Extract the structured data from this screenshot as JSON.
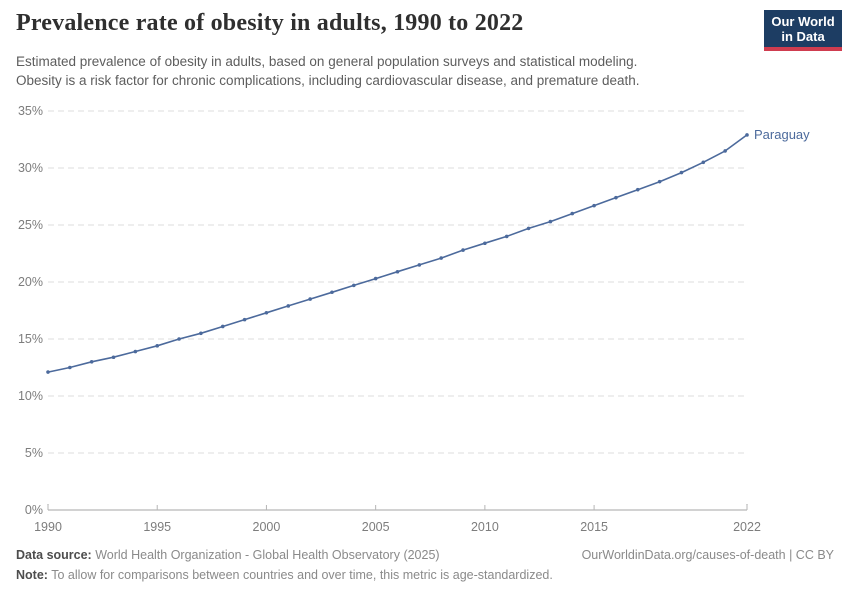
{
  "header": {
    "title": "Prevalence rate of obesity in adults, 1990 to 2022",
    "subtitle_line1": "Estimated prevalence of obesity in adults, based on general population surveys and statistical modeling.",
    "subtitle_line2": "Obesity is a risk factor for chronic complications, including cardiovascular disease, and premature death."
  },
  "logo": {
    "line1": "Our World",
    "line2": "in Data",
    "bg_color": "#1d3d63",
    "accent_color": "#cf3c4f"
  },
  "chart_data": {
    "type": "line",
    "title": "Prevalence rate of obesity in adults, 1990 to 2022",
    "xlabel": "",
    "ylabel": "",
    "xlim": [
      1990,
      2022
    ],
    "ylim": [
      0,
      35
    ],
    "grid": "horizontal-dashed",
    "legend_position": "end-of-line-label",
    "xticks": [
      1990,
      1995,
      2000,
      2005,
      2010,
      2015,
      2022
    ],
    "yticks": [
      0,
      5,
      10,
      15,
      20,
      25,
      30,
      35
    ],
    "ytick_suffix": "%",
    "x": [
      1990,
      1991,
      1992,
      1993,
      1994,
      1995,
      1996,
      1997,
      1998,
      1999,
      2000,
      2001,
      2002,
      2003,
      2004,
      2005,
      2006,
      2007,
      2008,
      2009,
      2010,
      2011,
      2012,
      2013,
      2014,
      2015,
      2016,
      2017,
      2018,
      2019,
      2020,
      2021,
      2022
    ],
    "series": [
      {
        "name": "Paraguay",
        "color": "#4c6a9c",
        "values": [
          12.1,
          12.5,
          13.0,
          13.4,
          13.9,
          14.4,
          15.0,
          15.5,
          16.1,
          16.7,
          17.3,
          17.9,
          18.5,
          19.1,
          19.7,
          20.3,
          20.9,
          21.5,
          22.1,
          22.8,
          23.4,
          24.0,
          24.7,
          25.3,
          26.0,
          26.7,
          27.4,
          28.1,
          28.8,
          29.6,
          30.5,
          31.5,
          32.9
        ]
      }
    ]
  },
  "footer": {
    "data_source_label": "Data source:",
    "data_source_value": " World Health Organization - Global Health Observatory (2025)",
    "link": "OurWorldinData.org/causes-of-death | CC BY",
    "note_label": "Note:",
    "note_value": " To allow for comparisons between countries and over time, this metric is age-standardized."
  }
}
